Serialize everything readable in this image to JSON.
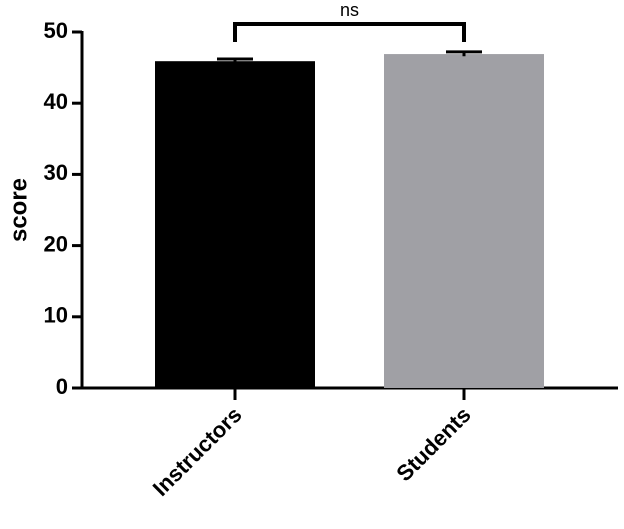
{
  "chart_data": {
    "type": "bar",
    "y_label": "score",
    "annotation": "ns",
    "categories": [
      "Instructors",
      "Students"
    ],
    "values": [
      45.9,
      46.9
    ],
    "errors": [
      0.3,
      0.3
    ],
    "colors": [
      "#000000",
      "#a0a0a5"
    ],
    "ylim": [
      0,
      50
    ],
    "yticks": [
      0,
      10,
      20,
      30,
      40,
      50
    ]
  }
}
